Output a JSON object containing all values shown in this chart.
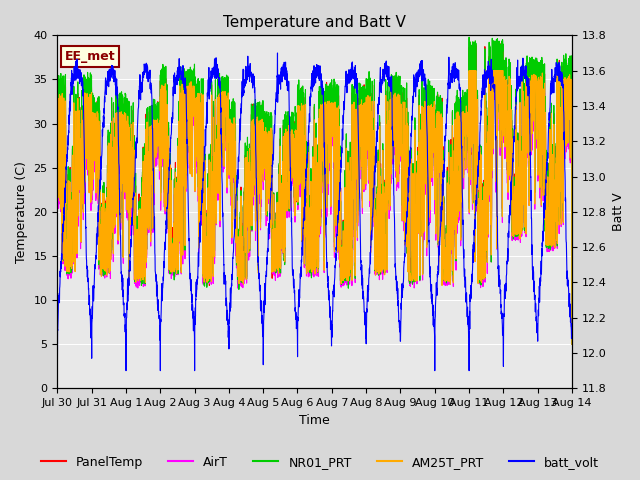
{
  "title": "Temperature and Batt V",
  "xlabel": "Time",
  "ylabel_left": "Temperature (C)",
  "ylabel_right": "Batt V",
  "annotation": "EE_met",
  "ylim_left": [
    0,
    40
  ],
  "ylim_right": [
    11.8,
    13.8
  ],
  "xlim_days": [
    0,
    15
  ],
  "x_tick_labels": [
    "Jul 30",
    "Jul 31",
    "Aug 1",
    "Aug 2",
    "Aug 3",
    "Aug 4",
    "Aug 5",
    "Aug 6",
    "Aug 7",
    "Aug 8",
    "Aug 9",
    "Aug 10",
    "Aug 11",
    "Aug 12",
    "Aug 13",
    "Aug 14"
  ],
  "series_colors": {
    "PanelTemp": "#ff0000",
    "AirT": "#ff00ff",
    "NR01_PRT": "#00cc00",
    "AM25T_PRT": "#ffaa00",
    "batt_volt": "#0000ff"
  },
  "background_color": "#d8d8d8",
  "plot_bg_color": "#e8e8e8",
  "title_fontsize": 11,
  "axis_fontsize": 9,
  "tick_fontsize": 8,
  "legend_fontsize": 9,
  "num_points": 3000
}
